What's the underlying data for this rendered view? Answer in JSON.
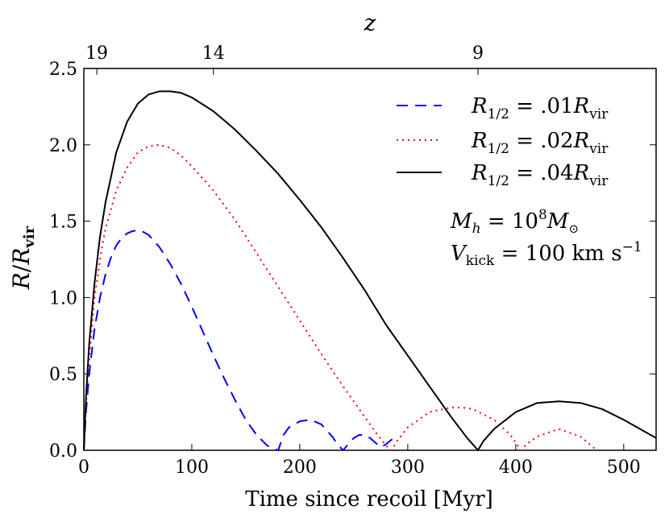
{
  "chart_data": {
    "type": "line",
    "xlabel": "Time since recoil [Myr]",
    "ylabel_main": "R",
    "ylabel_sub": "vir",
    "xlim": [
      0,
      530
    ],
    "ylim": [
      0,
      2.5
    ],
    "x_ticks": [
      0,
      100,
      200,
      300,
      400,
      500
    ],
    "y_ticks": [
      0.0,
      0.5,
      1.0,
      1.5,
      2.0,
      2.5
    ],
    "y_tick_labels": [
      "0.0",
      "0.5",
      "1.0",
      "1.5",
      "2.0",
      "2.5"
    ],
    "top_axis": {
      "label": "z",
      "ticks": [
        {
          "label": "19",
          "x": 12
        },
        {
          "label": "14",
          "x": 120
        },
        {
          "label": "9",
          "x": 365
        }
      ]
    },
    "annotation": {
      "line1": {
        "main": "M",
        "sub": "h",
        "eq": " = 10",
        "sup": "8",
        "tail": "M",
        "tail_sub": "⊙"
      },
      "line2": {
        "main": "V",
        "sub": "kick",
        "eq": " = 100 km s",
        "sup": "−1"
      }
    },
    "series": [
      {
        "name": "R1/2 = .01Rvir",
        "label_coef": ".01",
        "color": "#0000ff",
        "style": "dashed",
        "x": [
          0,
          2,
          5,
          10,
          15,
          20,
          25,
          30,
          35,
          40,
          45,
          50,
          55,
          60,
          70,
          80,
          90,
          100,
          110,
          120,
          130,
          140,
          150,
          160,
          170,
          175,
          180,
          185,
          190,
          200,
          210,
          220,
          230,
          235,
          240,
          245,
          250,
          255,
          260,
          265,
          270,
          275,
          280,
          285,
          290
        ],
        "y": [
          0,
          0.25,
          0.5,
          0.8,
          1.0,
          1.15,
          1.26,
          1.34,
          1.39,
          1.42,
          1.435,
          1.44,
          1.43,
          1.41,
          1.33,
          1.22,
          1.09,
          0.94,
          0.78,
          0.62,
          0.47,
          0.33,
          0.2,
          0.1,
          0.03,
          0.01,
          0.0,
          0.1,
          0.15,
          0.19,
          0.2,
          0.17,
          0.09,
          0.04,
          0.0,
          0.04,
          0.08,
          0.1,
          0.1,
          0.08,
          0.05,
          0.02,
          0.04,
          0.07,
          0.06
        ]
      },
      {
        "name": "R1/2 = .02Rvir",
        "label_coef": ".02",
        "color": "#ff0000",
        "style": "dotted",
        "x": [
          0,
          2,
          5,
          10,
          15,
          20,
          30,
          40,
          50,
          60,
          70,
          80,
          90,
          100,
          120,
          140,
          160,
          180,
          200,
          220,
          240,
          260,
          270,
          280,
          285,
          290,
          300,
          320,
          340,
          350,
          360,
          380,
          395,
          405,
          410,
          420,
          440,
          460,
          470,
          475
        ],
        "y": [
          0,
          0.3,
          0.6,
          1.0,
          1.25,
          1.45,
          1.7,
          1.85,
          1.95,
          1.99,
          2.0,
          1.98,
          1.93,
          1.86,
          1.7,
          1.51,
          1.29,
          1.07,
          0.85,
          0.63,
          0.42,
          0.22,
          0.12,
          0.03,
          0.0,
          0.06,
          0.15,
          0.25,
          0.28,
          0.28,
          0.27,
          0.2,
          0.1,
          0.0,
          0.04,
          0.09,
          0.14,
          0.09,
          0.03,
          0.0
        ]
      },
      {
        "name": "R1/2 = .04Rvir",
        "label_coef": ".04",
        "color": "#000000",
        "style": "solid",
        "x": [
          0,
          2,
          5,
          10,
          15,
          20,
          30,
          40,
          50,
          60,
          70,
          80,
          90,
          100,
          120,
          140,
          160,
          180,
          200,
          220,
          240,
          260,
          280,
          300,
          320,
          340,
          355,
          365,
          370,
          380,
          400,
          420,
          440,
          460,
          480,
          500,
          520,
          530
        ],
        "y": [
          0,
          0.35,
          0.7,
          1.1,
          1.4,
          1.62,
          1.95,
          2.15,
          2.27,
          2.33,
          2.35,
          2.35,
          2.34,
          2.31,
          2.22,
          2.1,
          1.96,
          1.81,
          1.64,
          1.46,
          1.26,
          1.05,
          0.82,
          0.62,
          0.42,
          0.22,
          0.08,
          0.0,
          0.06,
          0.14,
          0.25,
          0.31,
          0.32,
          0.31,
          0.27,
          0.2,
          0.12,
          0.08
        ]
      }
    ]
  }
}
